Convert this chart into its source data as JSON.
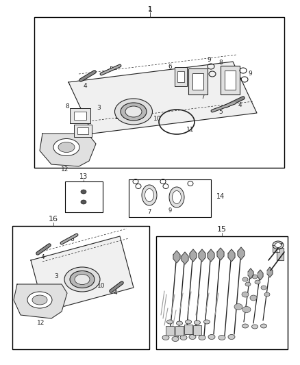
{
  "bg_color": "#ffffff",
  "fig_width": 4.38,
  "fig_height": 5.33,
  "dpi": 100,
  "dark": "#222222",
  "gray": "#888888",
  "light_gray": "#cccccc",
  "mid_gray": "#999999"
}
